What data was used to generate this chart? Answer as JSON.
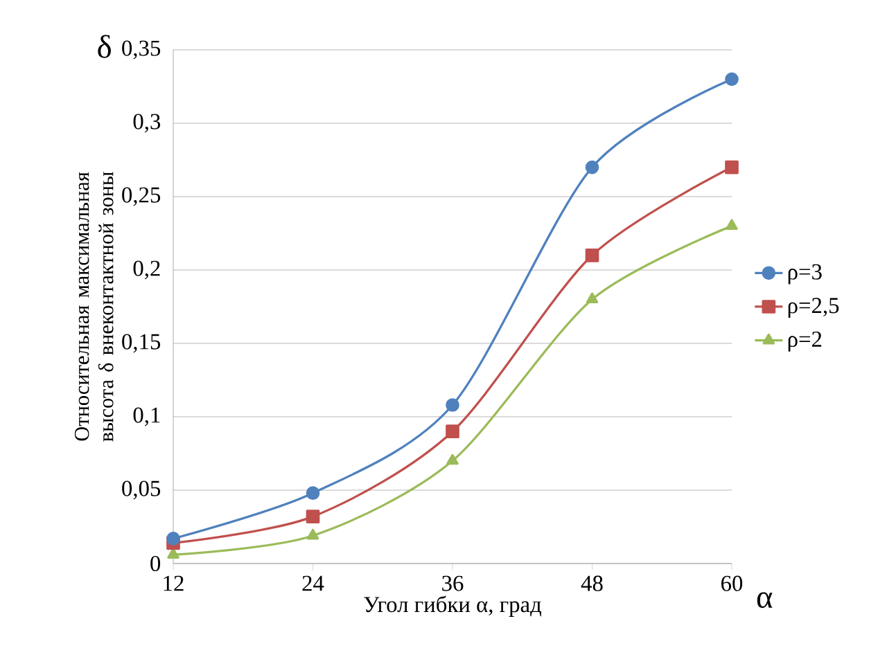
{
  "chart_data": {
    "type": "line",
    "xlabel": "Угол гибки α, град",
    "ylabel": "Относительная максимальная высота δ внеконтактной зоны",
    "annotations": [
      "δ",
      "α"
    ],
    "x": [
      12,
      24,
      36,
      48,
      60
    ],
    "series": [
      {
        "name": "ρ=3",
        "color": "#4f81bd",
        "marker": "circle",
        "values": [
          0.017,
          0.048,
          0.108,
          0.27,
          0.33
        ]
      },
      {
        "name": "ρ=2,5",
        "color": "#c0504d",
        "marker": "square",
        "values": [
          0.014,
          0.032,
          0.09,
          0.21,
          0.27
        ]
      },
      {
        "name": "ρ=2",
        "color": "#9bbb59",
        "marker": "triangle",
        "values": [
          0.006,
          0.019,
          0.07,
          0.18,
          0.23
        ]
      }
    ],
    "xlim": [
      12,
      60
    ],
    "xticks": [
      12,
      24,
      36,
      48,
      60
    ],
    "ylim": [
      0,
      0.35
    ],
    "yticks": [
      0,
      {
        "value": 0.05,
        "label": "0,05"
      },
      {
        "value": 0.1,
        "label": "0,1"
      },
      {
        "value": 0.15,
        "label": "0,15"
      },
      {
        "value": 0.2,
        "label": "0,2"
      },
      {
        "value": 0.25,
        "label": "0,25"
      },
      {
        "value": 0.3,
        "label": "0,3"
      },
      {
        "value": 0.35,
        "label": "0,35"
      }
    ],
    "grid": "y",
    "legend": "right",
    "line_style": "solid"
  }
}
